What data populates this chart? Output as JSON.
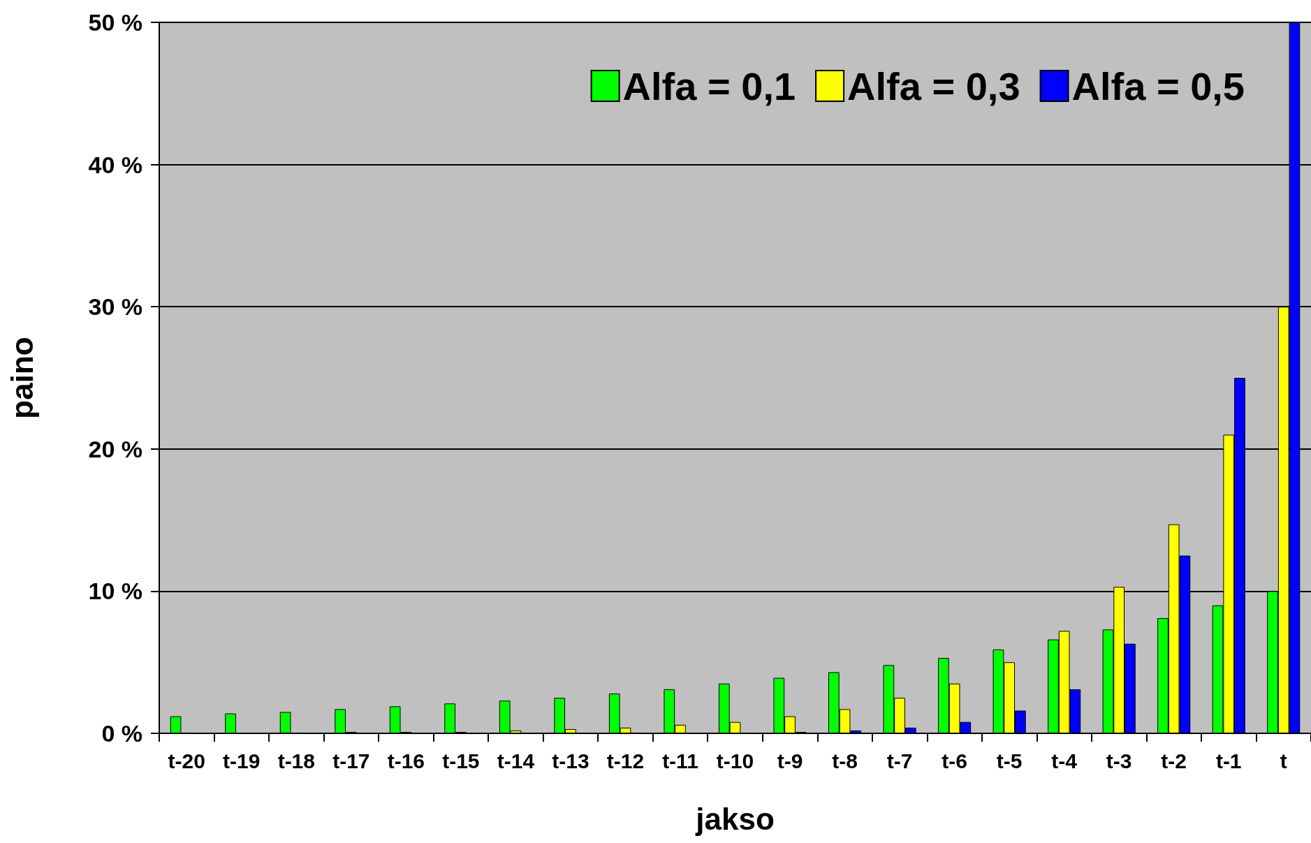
{
  "chart_data": {
    "type": "bar",
    "xlabel": "jakso",
    "ylabel": "paino",
    "categories": [
      "t-20",
      "t-19",
      "t-18",
      "t-17",
      "t-16",
      "t-15",
      "t-14",
      "t-13",
      "t-12",
      "t-11",
      "t-10",
      "t-9",
      "t-8",
      "t-7",
      "t-6",
      "t-5",
      "t-4",
      "t-3",
      "t-2",
      "t-1",
      "t"
    ],
    "series": [
      {
        "name": "Alfa = 0,1",
        "color": "#00ff00",
        "values": [
          1.2,
          1.4,
          1.5,
          1.7,
          1.9,
          2.1,
          2.3,
          2.5,
          2.8,
          3.1,
          3.5,
          3.9,
          4.3,
          4.8,
          5.3,
          5.9,
          6.6,
          7.3,
          8.1,
          9,
          10
        ]
      },
      {
        "name": "Alfa = 0,3",
        "color": "#ffff00",
        "values": [
          0,
          0,
          0,
          0.1,
          0.1,
          0.1,
          0.2,
          0.3,
          0.4,
          0.6,
          0.8,
          1.2,
          1.7,
          2.5,
          3.5,
          5,
          7.2,
          10.3,
          14.7,
          21,
          30
        ]
      },
      {
        "name": "Alfa = 0,5",
        "color": "#0000ff",
        "values": [
          0,
          0,
          0,
          0,
          0,
          0,
          0,
          0,
          0,
          0,
          0,
          0.1,
          0.2,
          0.4,
          0.8,
          1.6,
          3.1,
          6.3,
          12.5,
          25,
          50
        ]
      }
    ],
    "ylim": [
      0,
      50
    ],
    "yticks": [
      {
        "value": 0,
        "label": "0 %"
      },
      {
        "value": 10,
        "label": "10 %"
      },
      {
        "value": 20,
        "label": "20 %"
      },
      {
        "value": 30,
        "label": "30 %"
      },
      {
        "value": 40,
        "label": "40 %"
      },
      {
        "value": 50,
        "label": "50 %"
      }
    ],
    "grid": "y",
    "legend": "top right"
  }
}
